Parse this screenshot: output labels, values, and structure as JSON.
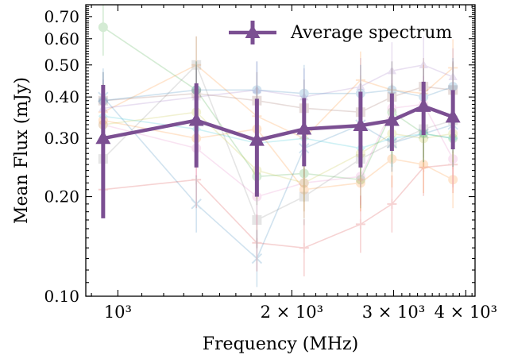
{
  "chart_data": {
    "type": "line",
    "title": "",
    "xlabel": "Frequency (MHz)",
    "ylabel": "Mean Flux (mJy)",
    "x_scale": "log",
    "y_scale": "log",
    "xlim": [
      880,
      4150
    ],
    "ylim": [
      0.1,
      0.76
    ],
    "x_ticks": [
      {
        "value": 1000,
        "label": "10³"
      },
      {
        "value": 2000,
        "label": "2 × 10³"
      },
      {
        "value": 3000,
        "label": "3 × 10³"
      },
      {
        "value": 4000,
        "label": "4 × 10³"
      }
    ],
    "y_ticks": [
      {
        "value": 0.1,
        "label": "0.10"
      },
      {
        "value": 0.2,
        "label": "0.20"
      },
      {
        "value": 0.3,
        "label": "0.30"
      },
      {
        "value": 0.4,
        "label": "0.40"
      },
      {
        "value": 0.5,
        "label": "0.50"
      },
      {
        "value": 0.6,
        "label": "0.60"
      },
      {
        "value": 0.7,
        "label": "0.70"
      }
    ],
    "legend": {
      "position": "top-right",
      "entries": [
        "Average spectrum"
      ]
    },
    "colors": {
      "average": "#7b4f92"
    },
    "x": [
      943,
      1367,
      1740,
      2100,
      2630,
      2980,
      3380,
      3800
    ],
    "series": [
      {
        "name": "Average spectrum",
        "color": "#7b4f92",
        "marker": "triangle",
        "values": [
          0.3,
          0.34,
          0.296,
          0.32,
          0.328,
          0.34,
          0.375,
          0.348
        ],
        "err_low": [
          0.172,
          0.245,
          0.2,
          0.247,
          0.245,
          0.275,
          0.307,
          0.278
        ],
        "err_high": [
          0.435,
          0.44,
          0.395,
          0.397,
          0.415,
          0.41,
          0.445,
          0.42
        ]
      }
    ],
    "background_series": [
      {
        "color": "#2ca02c",
        "marker": "circle",
        "values": [
          0.65,
          0.42,
          0.23,
          0.235,
          0.225,
          0.36,
          0.31,
          0.3
        ]
      },
      {
        "color": "#ff7f0e",
        "marker": "plus",
        "values": [
          0.36,
          0.5,
          0.35,
          0.3,
          0.45,
          0.42,
          0.41,
          0.49
        ]
      },
      {
        "color": "#1f77b4",
        "marker": "x",
        "values": [
          0.4,
          0.19,
          0.13,
          0.28,
          0.33,
          0.29,
          0.31,
          0.33
        ]
      },
      {
        "color": "#d62728",
        "marker": "plus",
        "values": [
          0.21,
          0.225,
          0.145,
          0.14,
          0.165,
          0.19,
          0.245,
          0.25
        ]
      },
      {
        "color": "#ff7f0e",
        "marker": "circle",
        "values": [
          0.34,
          0.3,
          0.32,
          0.21,
          0.22,
          0.26,
          0.25,
          0.225
        ]
      },
      {
        "color": "#7f7f7f",
        "marker": "square",
        "values": [
          0.26,
          0.5,
          0.17,
          0.2,
          0.26,
          0.29,
          0.32,
          0.34
        ]
      },
      {
        "color": "#9467bd",
        "marker": "triangle",
        "values": [
          0.37,
          0.4,
          0.42,
          0.4,
          0.43,
          0.48,
          0.5,
          0.46
        ]
      },
      {
        "color": "#8c564b",
        "marker": "square",
        "values": [
          0.39,
          0.41,
          0.39,
          0.37,
          0.36,
          0.4,
          0.43,
          0.42
        ]
      },
      {
        "color": "#e377c2",
        "marker": "circle",
        "values": [
          0.33,
          0.28,
          0.2,
          0.22,
          0.23,
          0.37,
          0.38,
          0.26
        ]
      },
      {
        "color": "#17becf",
        "marker": "diamond",
        "values": [
          0.35,
          0.32,
          0.29,
          0.3,
          0.28,
          0.3,
          0.31,
          0.3
        ]
      },
      {
        "color": "#bcbd22",
        "marker": "circle",
        "values": [
          0.33,
          0.36,
          0.24,
          0.22,
          0.27,
          0.31,
          0.3,
          0.31
        ]
      },
      {
        "color": "#1f77b4",
        "marker": "circle",
        "values": [
          0.39,
          0.42,
          0.42,
          0.41,
          0.41,
          0.42,
          0.4,
          0.43
        ]
      }
    ]
  }
}
